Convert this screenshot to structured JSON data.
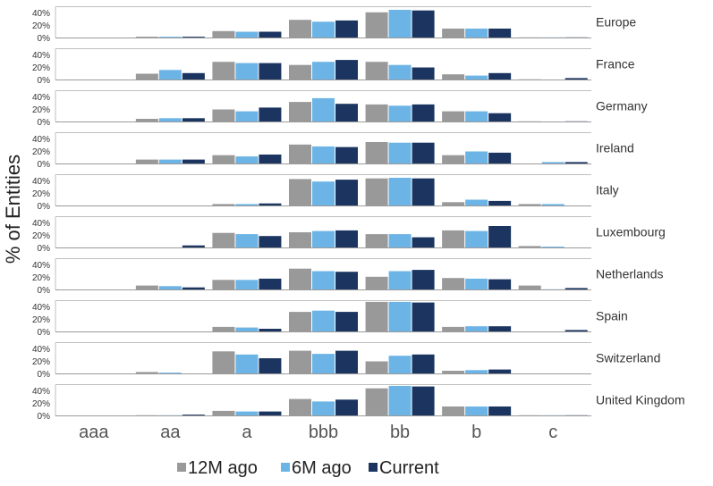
{
  "chart_data": {
    "type": "bar",
    "ylabel": "% of Entities",
    "categories": [
      "aaa",
      "aa",
      "a",
      "bbb",
      "bb",
      "b",
      "c"
    ],
    "yticks": [
      "40%",
      "20%",
      "0%"
    ],
    "ylim": [
      0,
      50
    ],
    "legend_position": "bottom",
    "series_styles": [
      {
        "name": "12M ago",
        "color": "#999999"
      },
      {
        "name": "6M ago",
        "color": "#6cb4e6"
      },
      {
        "name": "Current",
        "color": "#1b3560"
      }
    ],
    "panels": [
      {
        "country": "Europe",
        "series": [
          [
            0,
            2,
            11,
            29,
            41,
            15,
            1
          ],
          [
            0,
            2,
            10,
            26,
            45,
            15,
            1
          ],
          [
            0,
            2,
            10,
            28,
            44,
            15,
            1
          ]
        ]
      },
      {
        "country": "France",
        "series": [
          [
            0,
            10,
            29,
            24,
            29,
            9,
            1
          ],
          [
            0,
            16,
            27,
            29,
            24,
            7,
            0
          ],
          [
            0,
            11,
            27,
            32,
            20,
            11,
            3
          ]
        ]
      },
      {
        "country": "Germany",
        "series": [
          [
            0,
            5,
            20,
            32,
            28,
            17,
            1
          ],
          [
            0,
            6,
            17,
            38,
            26,
            17,
            0
          ],
          [
            0,
            6,
            23,
            29,
            28,
            14,
            1
          ]
        ]
      },
      {
        "country": "Ireland",
        "series": [
          [
            0,
            7,
            14,
            31,
            35,
            14,
            0
          ],
          [
            0,
            7,
            12,
            28,
            34,
            20,
            3
          ],
          [
            0,
            7,
            15,
            27,
            34,
            18,
            3
          ]
        ]
      },
      {
        "country": "Italy",
        "series": [
          [
            0,
            0,
            3,
            43,
            44,
            6,
            3
          ],
          [
            0,
            0,
            3,
            39,
            45,
            10,
            3
          ],
          [
            0,
            0,
            4,
            42,
            44,
            8,
            0
          ]
        ]
      },
      {
        "country": "Luxembourg",
        "series": [
          [
            0,
            0,
            24,
            25,
            22,
            28,
            3
          ],
          [
            0,
            0,
            22,
            27,
            22,
            27,
            2
          ],
          [
            0,
            4,
            19,
            28,
            17,
            35,
            0
          ]
        ]
      },
      {
        "country": "Netherlands",
        "series": [
          [
            0,
            7,
            16,
            34,
            21,
            19,
            7
          ],
          [
            0,
            6,
            16,
            30,
            30,
            18,
            1
          ],
          [
            0,
            4,
            18,
            29,
            32,
            17,
            3
          ]
        ]
      },
      {
        "country": "Spain",
        "series": [
          [
            0,
            0,
            8,
            32,
            48,
            8,
            0
          ],
          [
            0,
            0,
            7,
            34,
            48,
            9,
            0
          ],
          [
            0,
            0,
            5,
            32,
            47,
            9,
            3
          ]
        ]
      },
      {
        "country": "Switzerland",
        "series": [
          [
            0,
            3,
            36,
            37,
            20,
            5,
            0
          ],
          [
            0,
            2,
            31,
            32,
            29,
            6,
            0
          ],
          [
            0,
            0,
            25,
            37,
            31,
            7,
            0
          ]
        ]
      },
      {
        "country": "United Kingdom",
        "series": [
          [
            0,
            1,
            8,
            27,
            44,
            15,
            1
          ],
          [
            0,
            1,
            7,
            23,
            48,
            15,
            1
          ],
          [
            0,
            2,
            7,
            26,
            47,
            15,
            1
          ]
        ]
      }
    ]
  }
}
